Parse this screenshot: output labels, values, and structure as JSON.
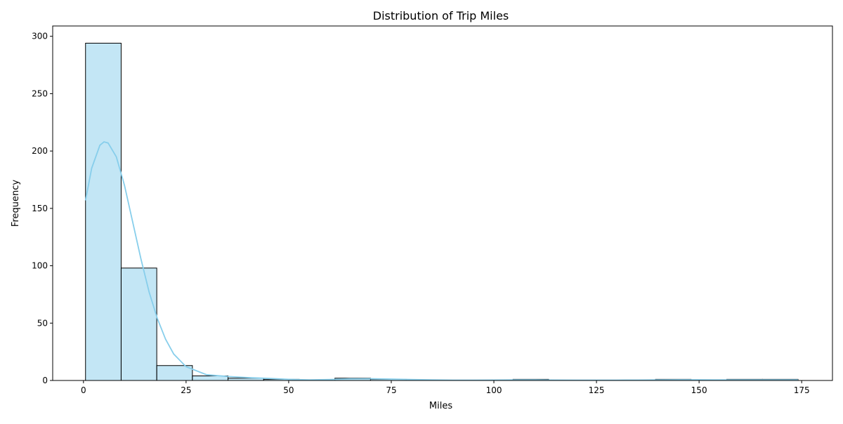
{
  "chart_data": {
    "type": "bar",
    "subtype": "histogram",
    "title": "Distribution of Trip Miles",
    "xlabel": "Miles",
    "ylabel": "Frequency",
    "xlim": [
      -7.5,
      182.5
    ],
    "ylim": [
      0,
      309
    ],
    "xticks": [
      0,
      25,
      50,
      75,
      100,
      125,
      150,
      175
    ],
    "yticks": [
      0,
      50,
      100,
      150,
      200,
      250,
      300
    ],
    "bin_edges": [
      0.5,
      9.18,
      17.86,
      26.54,
      35.22,
      43.9,
      52.58,
      61.26,
      69.94,
      78.62,
      87.3,
      95.98,
      104.66,
      113.34,
      122.02,
      130.7,
      139.38,
      148.06,
      156.74,
      165.42,
      174.1
    ],
    "values": [
      294,
      98,
      13,
      4,
      2,
      1,
      0,
      2,
      1,
      0,
      0,
      0,
      1,
      0,
      0,
      0,
      1,
      0,
      1,
      1
    ],
    "bar_color": "#87ceeb",
    "bar_alpha": 0.5,
    "edge_color": "#000000",
    "kde": {
      "color": "#87ceeb",
      "x": [
        0.5,
        2,
        4,
        5,
        6,
        8,
        10,
        12,
        14,
        16,
        18,
        20,
        22,
        25,
        30,
        35,
        40,
        45,
        50,
        55,
        60,
        65,
        70,
        75,
        80,
        85,
        90,
        95,
        100,
        105,
        110,
        115,
        120,
        125,
        130,
        135,
        140,
        145,
        150,
        155,
        160,
        165,
        170,
        174.1
      ],
      "y": [
        157,
        185,
        205,
        208,
        207,
        195,
        170,
        138,
        106,
        77,
        54,
        36,
        23,
        12,
        5,
        3.5,
        2.5,
        1.8,
        1.0,
        0.5,
        0.8,
        1.4,
        1.5,
        1.2,
        0.8,
        0.5,
        0.3,
        0.3,
        0.4,
        0.5,
        0.5,
        0.4,
        0.3,
        0.3,
        0.3,
        0.4,
        0.5,
        0.6,
        0.6,
        0.5,
        0.5,
        0.5,
        0.5,
        0.5
      ]
    }
  }
}
